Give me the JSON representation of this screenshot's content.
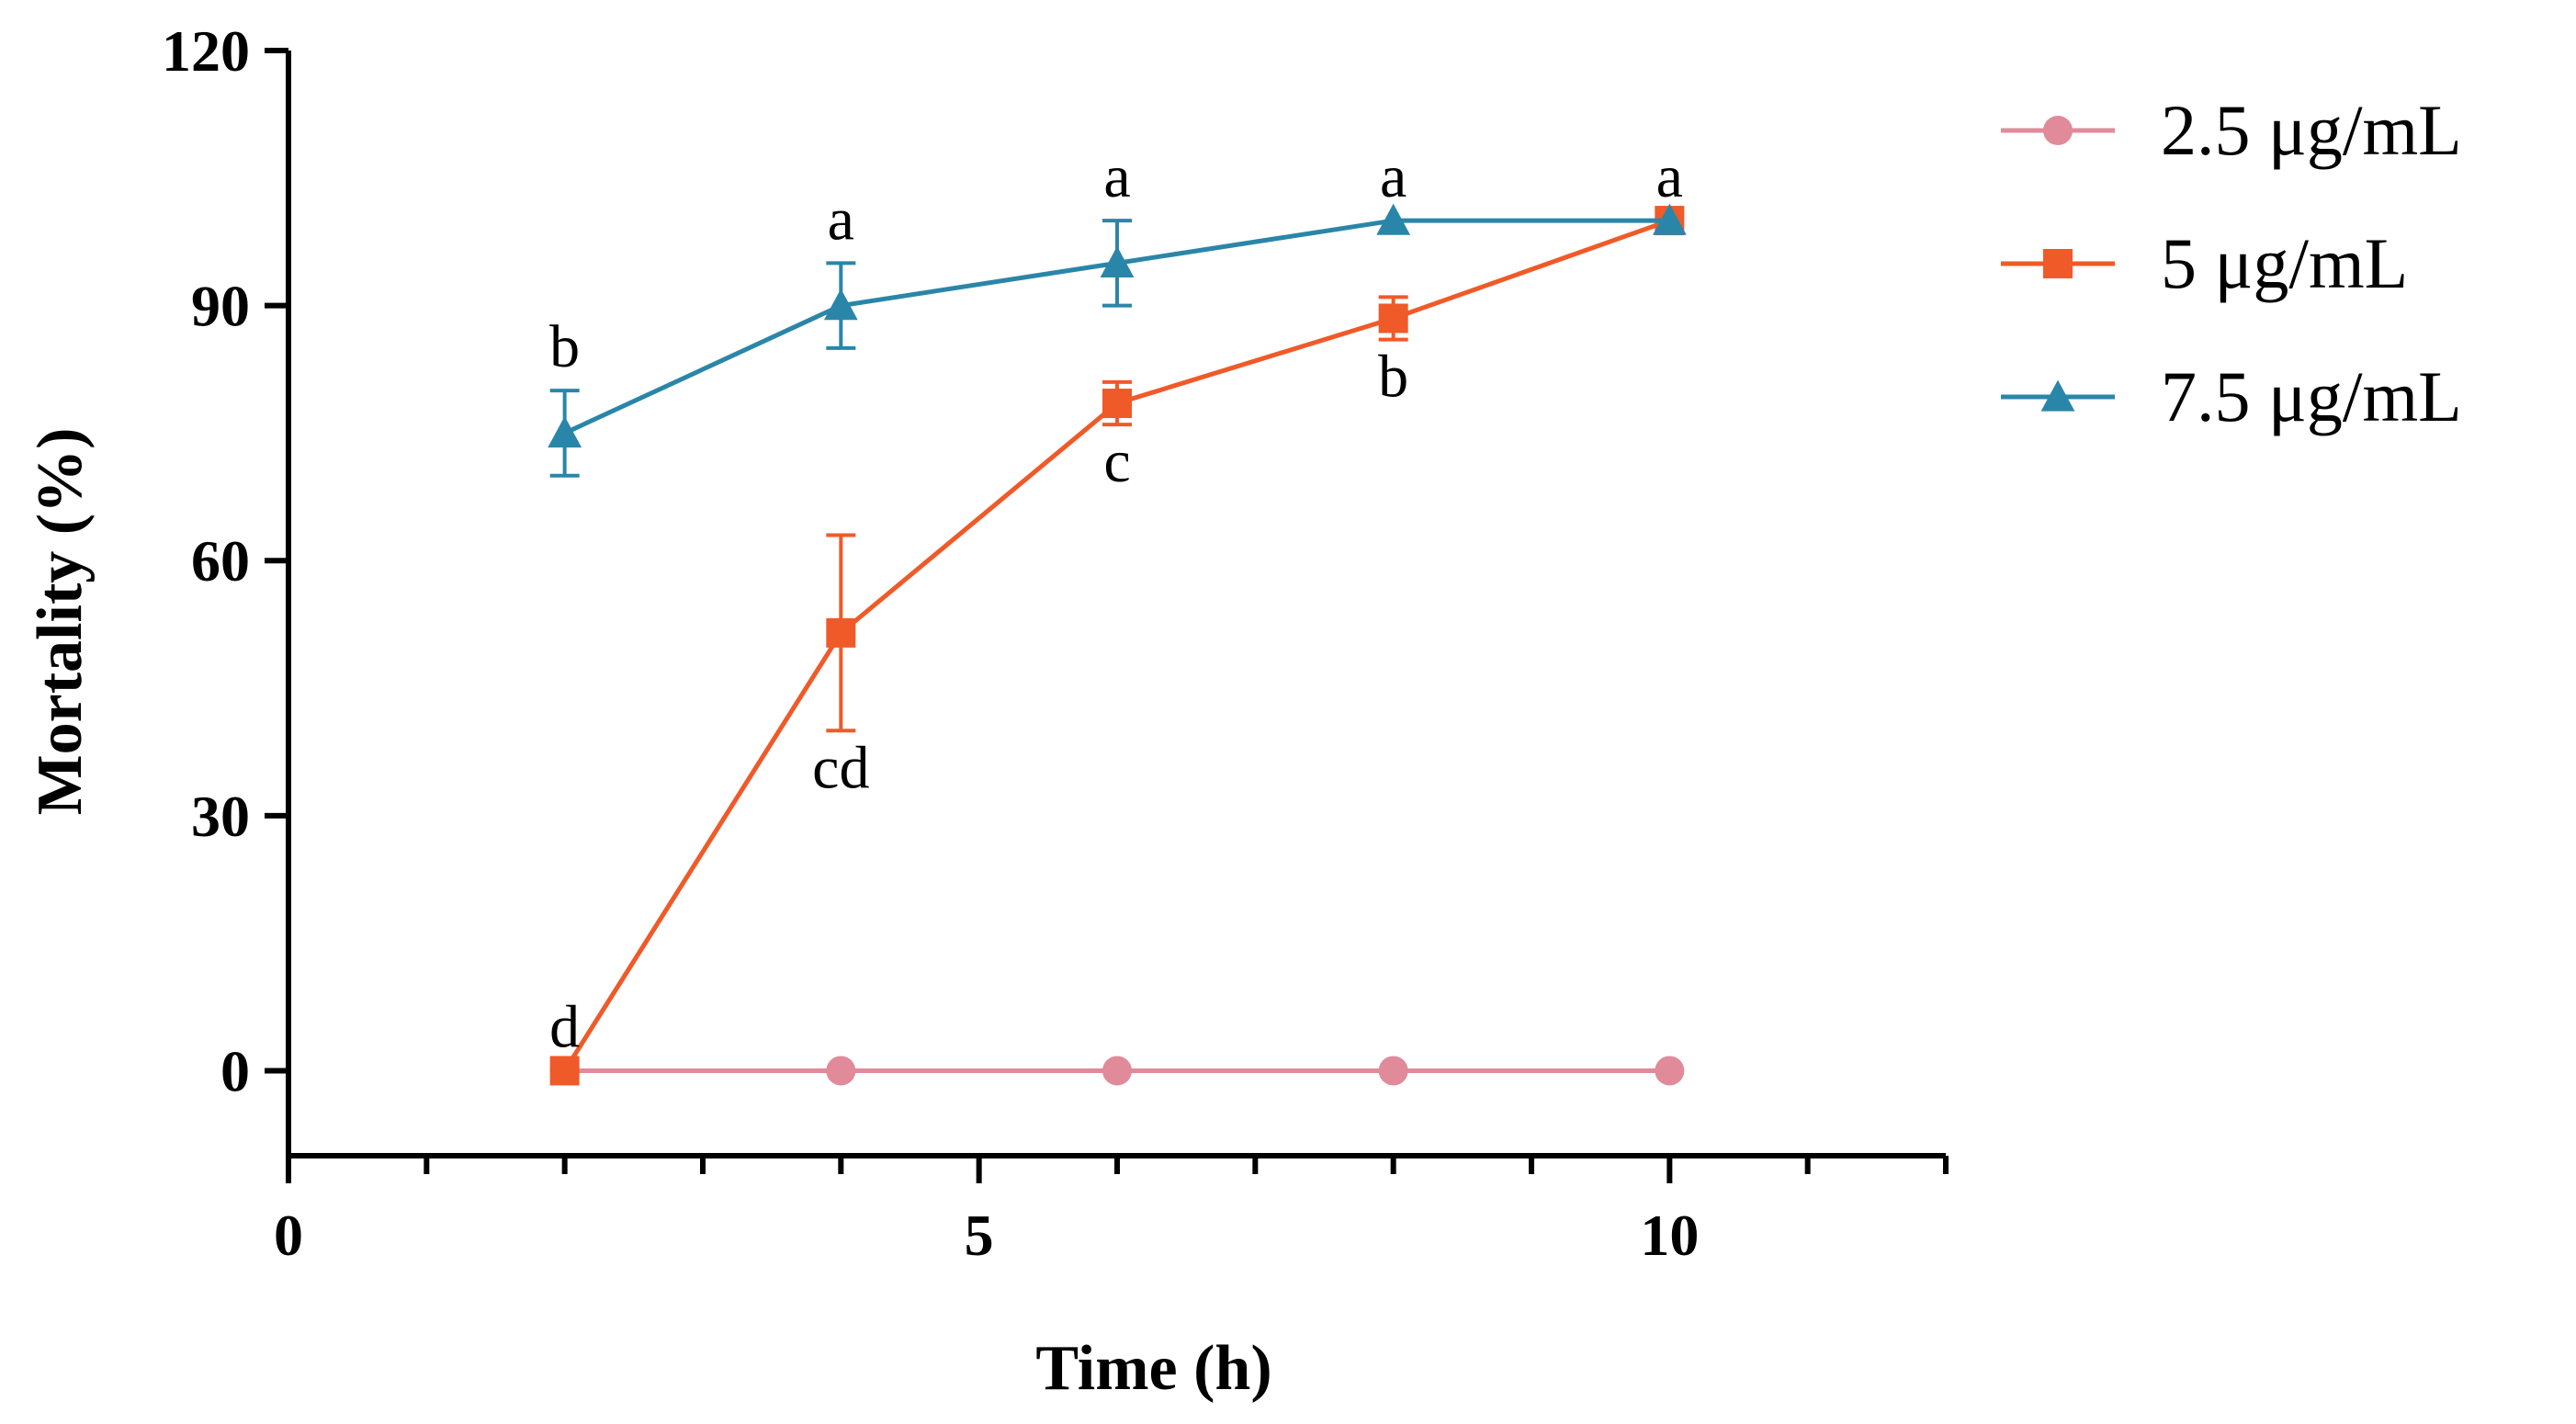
{
  "chart_data": {
    "type": "line",
    "title": "",
    "xlabel": "Time (h)",
    "ylabel": "Mortality (%)",
    "xlim": [
      0,
      12
    ],
    "ylim": [
      -10,
      120
    ],
    "xticks": [
      0,
      5,
      10
    ],
    "xtick_labels": [
      "0",
      "5",
      "10"
    ],
    "yticks": [
      0,
      30,
      60,
      90,
      120
    ],
    "ytick_labels": [
      "0",
      "30",
      "60",
      "90",
      "120"
    ],
    "x": [
      2,
      4,
      6,
      8,
      10
    ],
    "grid": false,
    "legend_position": "top-right",
    "series": [
      {
        "name": "2.5 μg/mL",
        "color": "#e08a9a",
        "marker": "circle",
        "values": [
          0,
          0,
          0,
          0,
          0
        ],
        "errors": [
          0,
          0,
          0,
          0,
          0
        ]
      },
      {
        "name": "5 μg/mL",
        "color": "#f05a28",
        "marker": "square",
        "values": [
          0,
          51.5,
          78.5,
          88.5,
          100
        ],
        "errors": [
          0,
          11.5,
          2.5,
          2.5,
          0
        ]
      },
      {
        "name": "7.5 μg/mL",
        "color": "#2a86a8",
        "marker": "triangle",
        "values": [
          75,
          90,
          95,
          100,
          100
        ],
        "errors": [
          5,
          5,
          5,
          0,
          0
        ]
      }
    ],
    "annotations": [
      {
        "x": 2,
        "y": 75,
        "series": "7.5 μg/mL",
        "text": "b",
        "position": "above"
      },
      {
        "x": 4,
        "y": 90,
        "series": "7.5 μg/mL",
        "text": "a",
        "position": "above"
      },
      {
        "x": 6,
        "y": 95,
        "series": "7.5 μg/mL",
        "text": "a",
        "position": "above"
      },
      {
        "x": 8,
        "y": 100,
        "series": "7.5 μg/mL",
        "text": "a",
        "position": "above"
      },
      {
        "x": 10,
        "y": 100,
        "series": "7.5 μg/mL",
        "text": "a",
        "position": "above"
      },
      {
        "x": 2,
        "y": 0,
        "series": "5 μg/mL",
        "text": "d",
        "position": "above"
      },
      {
        "x": 4,
        "y": 51.5,
        "series": "5 μg/mL",
        "text": "cd",
        "position": "below"
      },
      {
        "x": 6,
        "y": 78.5,
        "series": "5 μg/mL",
        "text": "c",
        "position": "below"
      },
      {
        "x": 8,
        "y": 88.5,
        "series": "5 μg/mL",
        "text": "b",
        "position": "below"
      }
    ]
  }
}
